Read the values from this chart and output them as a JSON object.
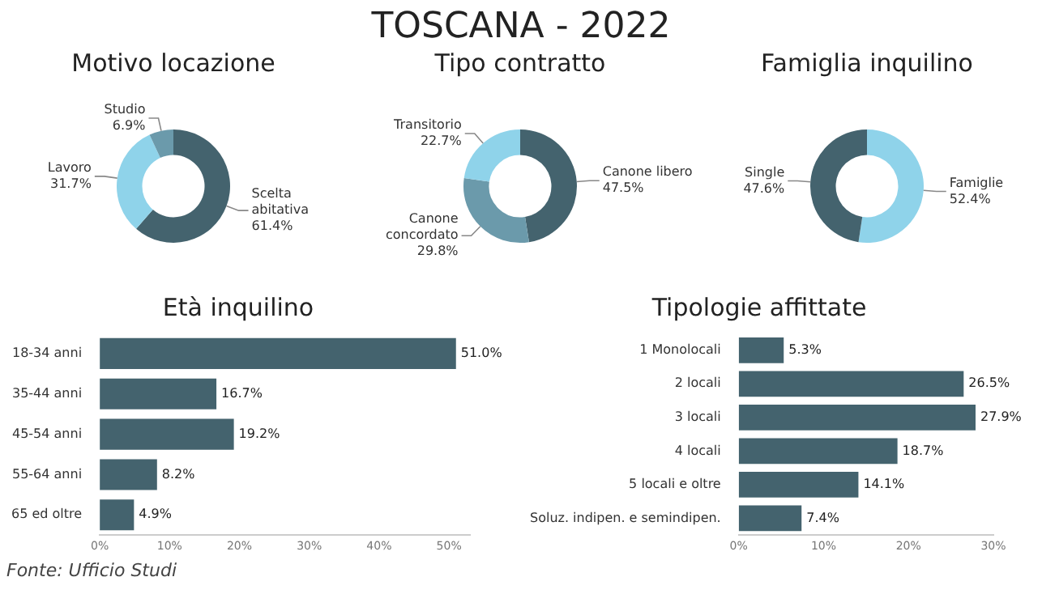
{
  "chart_data": [
    {
      "type": "other",
      "title": "TOSCANA - 2022",
      "annotations": [
        "Fonte: Ufficio Studi"
      ]
    },
    {
      "type": "donut",
      "title": "Motivo locazione",
      "categories": [
        "Scelta abitativa",
        "Lavoro",
        "Studio"
      ],
      "values": [
        61.4,
        31.7,
        6.9
      ],
      "colors": [
        "#44636e",
        "#8fd3ea",
        "#6b9aab"
      ],
      "data_labels": true,
      "value_labels": [
        "61.4%",
        "31.7%",
        "6.9%"
      ],
      "legend": false
    },
    {
      "type": "donut",
      "title": "Tipo contratto",
      "categories": [
        "Canone libero",
        "Canone concordato",
        "Transitorio"
      ],
      "values": [
        47.5,
        29.8,
        22.7
      ],
      "colors": [
        "#44636e",
        "#6b9aab",
        "#8fd3ea"
      ],
      "data_labels": true,
      "value_labels": [
        "47.5%",
        "29.8%",
        "22.7%"
      ],
      "legend": false
    },
    {
      "type": "donut",
      "title": "Famiglia inquilino",
      "categories": [
        "Famiglie",
        "Single"
      ],
      "values": [
        52.4,
        47.6
      ],
      "colors": [
        "#8fd3ea",
        "#44636e"
      ],
      "data_labels": true,
      "value_labels": [
        "52.4%",
        "47.6%"
      ],
      "legend": false
    },
    {
      "type": "bar",
      "orientation": "horizontal",
      "title": "Età inquilino",
      "categories": [
        "18-34 anni",
        "35-44 anni",
        "45-54 anni",
        "55-64 anni",
        "65 ed oltre"
      ],
      "values": [
        51.0,
        16.7,
        19.2,
        8.2,
        4.9
      ],
      "color": "#44636e",
      "data_labels": true,
      "value_labels": [
        "51.0%",
        "16.7%",
        "19.2%",
        "8.2%",
        "4.9%"
      ],
      "xlim": [
        0,
        53
      ],
      "xticks": [
        {
          "value": 0,
          "label": "0%"
        },
        {
          "value": 10,
          "label": "10%"
        },
        {
          "value": 20,
          "label": "20%"
        },
        {
          "value": 30,
          "label": "30%"
        },
        {
          "value": 40,
          "label": "40%"
        },
        {
          "value": 50,
          "label": "50%"
        }
      ],
      "grid": false,
      "legend": false
    },
    {
      "type": "bar",
      "orientation": "horizontal",
      "title": "Tipologie affittate",
      "categories": [
        "1 Monolocali",
        "2 locali",
        "3 locali",
        "4 locali",
        "5 locali e oltre",
        "Soluz. indipen. e semindipen."
      ],
      "values": [
        5.3,
        26.5,
        27.9,
        18.7,
        14.1,
        7.4
      ],
      "color": "#44636e",
      "data_labels": true,
      "value_labels": [
        "5.3%",
        "26.5%",
        "27.9%",
        "18.7%",
        "14.1%",
        "7.4%"
      ],
      "xlim": [
        0,
        30
      ],
      "xticks": [
        {
          "value": 0,
          "label": "0%"
        },
        {
          "value": 10,
          "label": "10%"
        },
        {
          "value": 20,
          "label": "20%"
        },
        {
          "value": 30,
          "label": "30%"
        }
      ],
      "grid": false,
      "legend": false
    }
  ]
}
